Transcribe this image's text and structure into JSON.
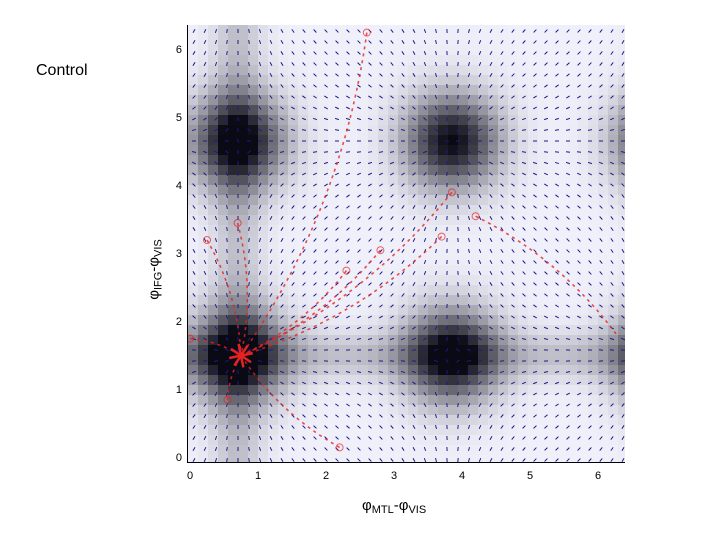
{
  "title": "Control",
  "chart_data": {
    "type": "heatmap",
    "title": "Control",
    "xlabel": "φMTL-φVIS",
    "ylabel": "φIFG-φVIS",
    "xlabel_parts": {
      "phi1": "φ",
      "sub1": "MTL",
      "dash": "-",
      "phi2": "φ",
      "sub2": "VIS"
    },
    "ylabel_parts": {
      "phi1": "φ",
      "sub1": "IFG",
      "dash": "-",
      "phi2": "φ",
      "sub2": "VIS"
    },
    "xlim": [
      0,
      6.28
    ],
    "ylim": [
      0,
      6.28
    ],
    "xticks": [
      "0",
      "1",
      "2",
      "3",
      "4",
      "5",
      "6"
    ],
    "yticks": [
      "0",
      "1",
      "2",
      "3",
      "4",
      "5",
      "6"
    ],
    "background": "grayscale potential landscape with blue quiver (vector field) arrows",
    "dark_minima": [
      {
        "x": 0.7,
        "y": 1.55
      },
      {
        "x": 0.7,
        "y": 4.7
      },
      {
        "x": 3.85,
        "y": 1.55
      },
      {
        "x": 3.85,
        "y": 4.7
      }
    ],
    "attractor": {
      "x": 0.75,
      "y": 1.55
    },
    "trajectories": [
      {
        "start": [
          0.25,
          3.25
        ],
        "end": [
          0.75,
          1.55
        ]
      },
      {
        "start": [
          0.7,
          3.5
        ],
        "end": [
          0.75,
          1.55
        ]
      },
      {
        "start": [
          2.3,
          2.8
        ],
        "end": [
          0.75,
          1.55
        ]
      },
      {
        "start": [
          2.8,
          3.1
        ],
        "end": [
          0.75,
          1.55
        ]
      },
      {
        "start": [
          3.7,
          3.3
        ],
        "end": [
          0.75,
          1.55
        ]
      },
      {
        "start": [
          3.85,
          3.95
        ],
        "end": [
          0.75,
          1.55
        ]
      },
      {
        "start": [
          4.2,
          3.6
        ],
        "end": [
          6.28,
          1.85
        ]
      },
      {
        "start": [
          2.6,
          6.3
        ],
        "end": [
          0.75,
          1.55
        ]
      },
      {
        "start": [
          0.55,
          0.9
        ],
        "end": [
          0.75,
          1.55
        ]
      },
      {
        "start": [
          2.2,
          0.2
        ],
        "end": [
          0.75,
          1.55
        ]
      },
      {
        "start": [
          0.0,
          1.8
        ],
        "end": [
          0.75,
          1.55
        ]
      }
    ],
    "colors": {
      "quiver": "#1a1a8c",
      "trajectory": "#e52222",
      "minimum": "#000000",
      "background_max": "#f2f3fb"
    }
  }
}
